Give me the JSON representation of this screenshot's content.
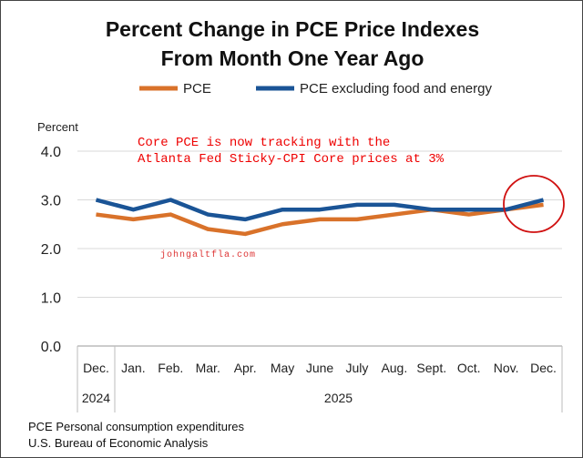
{
  "chart_data": {
    "type": "line",
    "title": [
      "Percent Change in PCE Price Indexes",
      "From Month One Year Ago"
    ],
    "ylabel": "Percent",
    "ylim": [
      0,
      4
    ],
    "yticks": [
      "0.0",
      "1.0",
      "2.0",
      "3.0",
      "4.0"
    ],
    "categories": [
      "Dec.",
      "Jan.",
      "Feb.",
      "Mar.",
      "Apr.",
      "May",
      "June",
      "July",
      "Aug.",
      "Sept.",
      "Oct.",
      "Nov.",
      "Dec."
    ],
    "year_labels": [
      "2024",
      "2025"
    ],
    "series": [
      {
        "name": "PCE",
        "color": "#d9722a",
        "values": [
          2.7,
          2.6,
          2.7,
          2.4,
          2.3,
          2.5,
          2.6,
          2.6,
          2.7,
          2.8,
          2.7,
          2.8,
          2.9
        ]
      },
      {
        "name": "PCE excluding food and energy",
        "color": "#1a5496",
        "values": [
          3.0,
          2.8,
          3.0,
          2.7,
          2.6,
          2.8,
          2.8,
          2.9,
          2.9,
          2.8,
          2.8,
          2.8,
          3.0
        ]
      }
    ],
    "annotation": [
      "Core PCE is now tracking with the",
      "Atlanta Fed Sticky-CPI Core prices at 3%"
    ],
    "watermark": "johngaltfla.com",
    "legend_position": "top"
  },
  "footer": [
    "PCE Personal consumption expenditures",
    "U.S. Bureau of Economic Analysis"
  ]
}
